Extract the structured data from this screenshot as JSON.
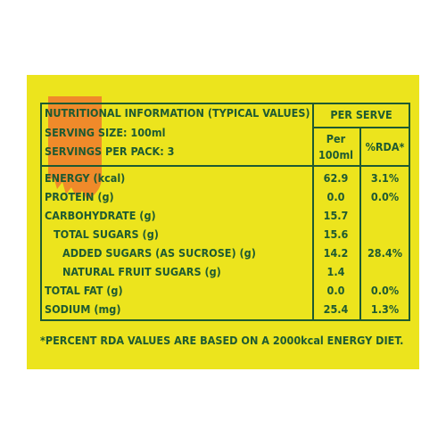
{
  "header": {
    "title": "NUTRITIONAL INFORMATION (TYPICAL VALUES)",
    "serving_size": "SERVING SIZE: 100ml",
    "servings_per_pack": "SERVINGS PER PACK: 3",
    "per_serve": "PER SERVE",
    "per": "Per",
    "per_unit": "100ml",
    "rda": "%RDA*"
  },
  "rows": [
    {
      "label": "ENERGY (kcal)",
      "per100": "62.9",
      "rda": "3.1%"
    },
    {
      "label": "PROTEIN (g)",
      "per100": "0.0",
      "rda": "0.0%"
    },
    {
      "label": "CARBOHYDRATE (g)",
      "per100": "15.7",
      "rda": ""
    },
    {
      "label": "TOTAL SUGARS (g)",
      "per100": "15.6",
      "rda": ""
    },
    {
      "label": "ADDED SUGARS (AS SUCROSE) (g)",
      "per100": "14.2",
      "rda": "28.4%"
    },
    {
      "label": "NATURAL FRUIT SUGARS (g)",
      "per100": "1.4",
      "rda": ""
    },
    {
      "label": "TOTAL FAT (g)",
      "per100": "0.0",
      "rda": "0.0%"
    },
    {
      "label": "SODIUM (mg)",
      "per100": "25.4",
      "rda": "1.3%"
    }
  ],
  "footnote": "*PERCENT RDA VALUES ARE BASED ON A 2000kcal ENERGY DIET.",
  "colors": {
    "background": "#ece41d",
    "text": "#1e5a32",
    "accent": "#f08a2a"
  }
}
